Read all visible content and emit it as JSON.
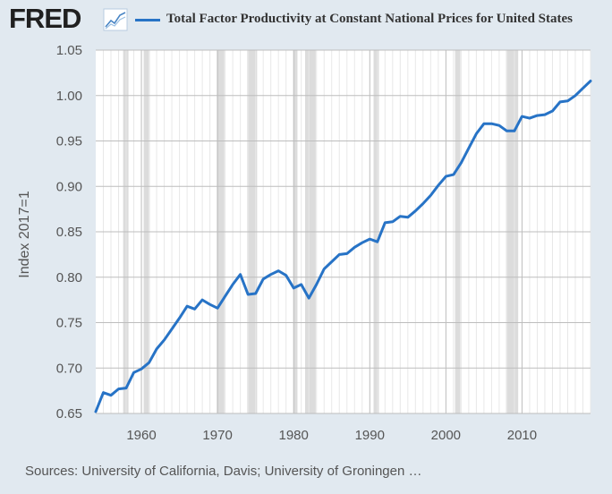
{
  "header": {
    "logo": "FRED",
    "logo_icon": "graph-icon",
    "series_label": "Total Factor Productivity at Constant National Prices for United States",
    "series_color": "#2773c6"
  },
  "source_text": "Sources: University of California, Davis; University of Groningen …",
  "chart_data": {
    "type": "line",
    "title": "Total Factor Productivity at Constant National Prices for United States",
    "xlabel": "",
    "ylabel": "Index 2017=1",
    "xlim": [
      1954,
      2019
    ],
    "ylim": [
      0.65,
      1.05
    ],
    "yticks": [
      0.65,
      0.7,
      0.75,
      0.8,
      0.85,
      0.9,
      0.95,
      1.0,
      1.05
    ],
    "ytick_labels": [
      "0.65",
      "0.70",
      "0.75",
      "0.80",
      "0.85",
      "0.90",
      "0.95",
      "1.00",
      "1.05"
    ],
    "xticks": [
      1960,
      1970,
      1980,
      1990,
      2000,
      2010
    ],
    "xtick_labels": [
      "1960",
      "1970",
      "1980",
      "1990",
      "2000",
      "2010"
    ],
    "recessions": [
      [
        1957.6,
        1958.3
      ],
      [
        1960.3,
        1961.1
      ],
      [
        1969.9,
        1970.9
      ],
      [
        1973.9,
        1975.2
      ],
      [
        1980.0,
        1980.5
      ],
      [
        1981.5,
        1982.9
      ],
      [
        1990.5,
        1991.2
      ],
      [
        2001.2,
        2001.9
      ],
      [
        2007.9,
        2009.5
      ]
    ],
    "series": [
      {
        "name": "Total Factor Productivity at Constant National Prices for United States",
        "color": "#2773c6",
        "x": [
          1954,
          1955,
          1956,
          1957,
          1958,
          1959,
          1960,
          1961,
          1962,
          1963,
          1964,
          1965,
          1966,
          1967,
          1968,
          1969,
          1970,
          1971,
          1972,
          1973,
          1974,
          1975,
          1976,
          1977,
          1978,
          1979,
          1980,
          1981,
          1982,
          1983,
          1984,
          1985,
          1986,
          1987,
          1988,
          1989,
          1990,
          1991,
          1992,
          1993,
          1994,
          1995,
          1996,
          1997,
          1998,
          1999,
          2000,
          2001,
          2002,
          2003,
          2004,
          2005,
          2006,
          2007,
          2008,
          2009,
          2010,
          2011,
          2012,
          2013,
          2014,
          2015,
          2016,
          2017,
          2018,
          2019
        ],
        "values": [
          0.652,
          0.673,
          0.67,
          0.677,
          0.678,
          0.695,
          0.699,
          0.706,
          0.721,
          0.731,
          0.743,
          0.755,
          0.768,
          0.765,
          0.775,
          0.77,
          0.766,
          0.779,
          0.792,
          0.803,
          0.781,
          0.782,
          0.798,
          0.803,
          0.807,
          0.802,
          0.788,
          0.792,
          0.777,
          0.792,
          0.809,
          0.817,
          0.825,
          0.826,
          0.833,
          0.838,
          0.842,
          0.839,
          0.86,
          0.861,
          0.867,
          0.866,
          0.873,
          0.881,
          0.89,
          0.901,
          0.911,
          0.913,
          0.926,
          0.942,
          0.958,
          0.969,
          0.969,
          0.967,
          0.961,
          0.961,
          0.977,
          0.975,
          0.978,
          0.979,
          0.983,
          0.993,
          0.994,
          1.0,
          1.008,
          1.016
        ]
      }
    ]
  }
}
